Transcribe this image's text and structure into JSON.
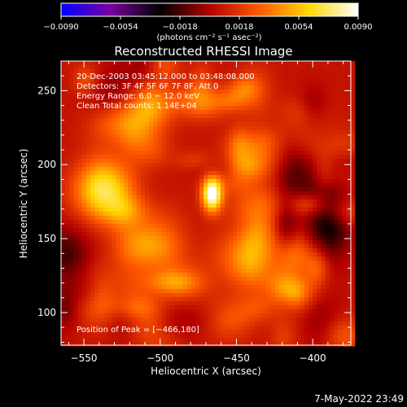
{
  "chart_data": {
    "type": "heatmap",
    "title": "Reconstructed RHESSI Image",
    "xlabel": "Heliocentric X (arcsec)",
    "ylabel": "Heliocentric Y (arcsec)",
    "xlim": [
      -565,
      -375
    ],
    "ylim": [
      78,
      270
    ],
    "x_ticks": [
      -550,
      -500,
      -450,
      -400
    ],
    "x_tick_labels": [
      "−550",
      "−500",
      "−450",
      "−400"
    ],
    "y_ticks": [
      100,
      150,
      200,
      250
    ],
    "y_tick_labels": [
      "100",
      "150",
      "200",
      "250"
    ],
    "colorbar": {
      "range": [
        -0.009,
        0.009
      ],
      "ticks": [
        -0.009,
        -0.0054,
        -0.0018,
        0.0018,
        0.0054,
        0.009
      ],
      "tick_labels": [
        "−0.0090",
        "−0.0054",
        "−0.0018",
        "0.0018",
        "0.0054",
        "0.0090"
      ],
      "units_label": "(photons cm⁻² s⁻¹ asec⁻²)",
      "colors": [
        "#0000ff",
        "#7800a0",
        "#000000",
        "#b40000",
        "#ff5a00",
        "#ffd700",
        "#ffffff"
      ]
    },
    "annotations": [
      "20-Dec-2003 03:45:12.000 to 03:48:08.000",
      "Detectors: 3F 4F 5F 6F 7F 8F, Att 0",
      "Energy Range: 6.0 − 12.0 keV",
      "Clean     Total counts: 1.14E+04"
    ],
    "peak_label": "Position of Peak = [−466,180]",
    "peak": {
      "x": -466,
      "y": 180,
      "value": 0.009
    },
    "bright_sources": [
      {
        "x": -466,
        "y": 180,
        "sx": 4.5,
        "sy": 8,
        "amp": 0.009
      },
      {
        "x": -540,
        "y": 185,
        "sx": 10,
        "sy": 16,
        "amp": 0.003
      },
      {
        "x": -470,
        "y": 242,
        "sx": 12,
        "sy": 8,
        "amp": 0.0024
      },
      {
        "x": -530,
        "y": 228,
        "sx": 12,
        "sy": 10,
        "amp": 0.0024
      },
      {
        "x": -435,
        "y": 155,
        "sx": 8,
        "sy": 10,
        "amp": 0.0021
      },
      {
        "x": -410,
        "y": 215,
        "sx": 10,
        "sy": 12,
        "amp": 0.0018
      },
      {
        "x": -500,
        "y": 140,
        "sx": 12,
        "sy": 10,
        "amp": 0.0018
      },
      {
        "x": -420,
        "y": 120,
        "sx": 8,
        "sy": 8,
        "amp": 0.0018
      },
      {
        "x": -555,
        "y": 120,
        "sx": 10,
        "sy": 14,
        "amp": -0.0025
      },
      {
        "x": -390,
        "y": 160,
        "sx": 10,
        "sy": 20,
        "amp": -0.002
      },
      {
        "x": -470,
        "y": 95,
        "sx": 20,
        "sy": 10,
        "amp": -0.0015
      }
    ]
  },
  "footer": {
    "timestamp": "7-May-2022 23:49"
  }
}
